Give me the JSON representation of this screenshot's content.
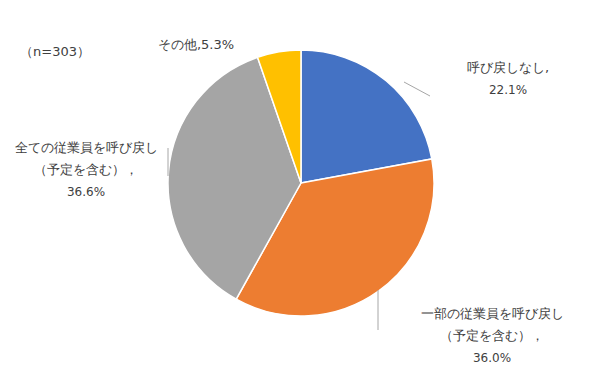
{
  "chart_data": {
    "type": "pie",
    "annotations": [
      "（n=303）"
    ],
    "categories": [
      "呼び戻しなし,",
      "一部の従業員を呼び戻し\n（予定を含む），",
      "全ての従業員を呼び戻し\n（予定を含む），",
      "その他,"
    ],
    "values": [
      22.1,
      36.0,
      36.6,
      5.3
    ],
    "value_labels": [
      "22.1%",
      "36.0%",
      "36.6%",
      "5.3%"
    ],
    "colors": [
      "#4472c4",
      "#ed7d31",
      "#a5a5a5",
      "#ffc000"
    ],
    "data_labels": true
  }
}
